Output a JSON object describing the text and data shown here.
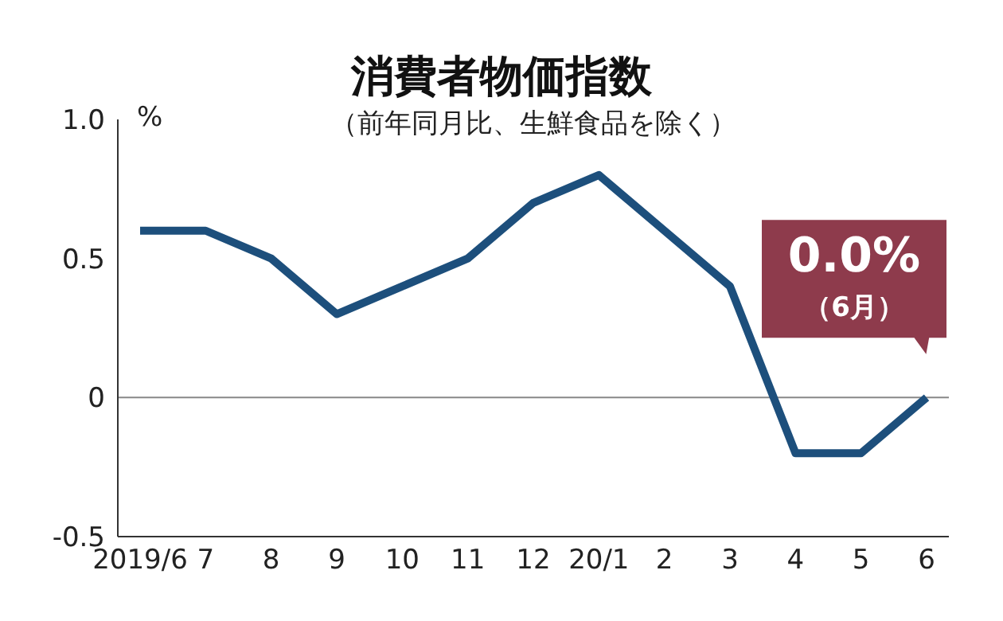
{
  "chart_data": {
    "type": "line",
    "title": "消費者物価指数",
    "subtitle": "（前年同月比、生鮮食品を除く）",
    "ylabel": "%",
    "categories": [
      "2019/6",
      "7",
      "8",
      "9",
      "10",
      "11",
      "12",
      "20/1",
      "2",
      "3",
      "4",
      "5",
      "6"
    ],
    "series": [
      {
        "color": "#1d4f7c",
        "values": [
          0.6,
          0.6,
          0.5,
          0.3,
          0.4,
          0.5,
          0.7,
          0.8,
          0.6,
          0.4,
          -0.2,
          -0.2,
          0.0
        ]
      }
    ],
    "ylim": [
      -0.5,
      1
    ],
    "yticks": [
      -0.5,
      {
        "value": 0,
        "label": "0"
      },
      0.5,
      {
        "value": 1,
        "label": "1.0"
      }
    ],
    "ref_lines": [
      {
        "axis": "y",
        "value": 0,
        "color": "#888888"
      }
    ],
    "annotations": [
      {
        "text": "0.0%\n（6月）",
        "x": "6",
        "y": 0
      }
    ],
    "grid": false,
    "marker": "none",
    "line_style": "solid"
  }
}
